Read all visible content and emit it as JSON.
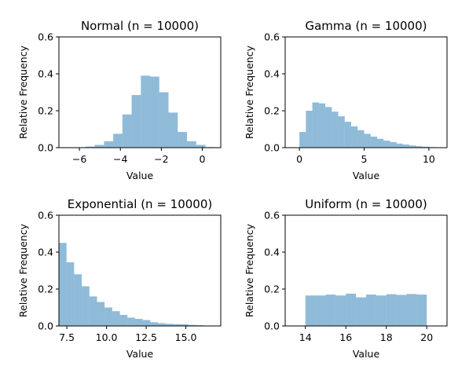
{
  "chart_data": [
    {
      "type": "bar",
      "title": "Normal (n = 10000)",
      "xlabel": "Value",
      "ylabel": "Relative Frequency",
      "xlim": [
        -7.0,
        0.9
      ],
      "ylim": [
        0,
        0.6
      ],
      "xticks": [
        -6,
        -4,
        -2,
        0
      ],
      "xtick_labels": [
        "−6",
        "−4",
        "−2",
        "0"
      ],
      "yticks": [
        0,
        0.2,
        0.4,
        0.6
      ],
      "ytick_labels": [
        "0.0",
        "0.2",
        "0.4",
        "0.6"
      ],
      "bin_edges": [
        -6.6,
        -6.15,
        -5.7,
        -5.25,
        -4.8,
        -4.35,
        -3.9,
        -3.45,
        -3.0,
        -2.55,
        -2.1,
        -1.65,
        -1.2,
        -0.75,
        -0.3,
        0.15,
        0.6
      ],
      "values": [
        0.0,
        0.002,
        0.006,
        0.015,
        0.035,
        0.075,
        0.18,
        0.285,
        0.39,
        0.385,
        0.3,
        0.19,
        0.085,
        0.035,
        0.015,
        0.003
      ]
    },
    {
      "type": "bar",
      "title": "Gamma (n = 10000)",
      "xlabel": "Value",
      "ylabel": "Relative Frequency",
      "xlim": [
        -1.1,
        11.4
      ],
      "ylim": [
        0,
        0.6
      ],
      "xticks": [
        0,
        5,
        10
      ],
      "xtick_labels": [
        "0",
        "5",
        "10"
      ],
      "yticks": [
        0,
        0.2,
        0.4,
        0.6
      ],
      "ytick_labels": [
        "0.0",
        "0.2",
        "0.4",
        "0.6"
      ],
      "bin_edges": [
        0.0,
        0.5,
        1.0,
        1.5,
        2.0,
        2.5,
        3.0,
        3.5,
        4.0,
        4.5,
        5.0,
        5.5,
        6.0,
        6.5,
        7.0,
        7.5,
        8.0,
        8.5,
        9.0,
        9.5,
        10.0,
        10.5,
        11.0
      ],
      "values": [
        0.085,
        0.2,
        0.245,
        0.24,
        0.22,
        0.195,
        0.17,
        0.14,
        0.115,
        0.095,
        0.075,
        0.06,
        0.048,
        0.038,
        0.03,
        0.022,
        0.017,
        0.012,
        0.008,
        0.005,
        0.003,
        0.002
      ]
    },
    {
      "type": "bar",
      "title": "Exponential (n = 10000)",
      "xlabel": "Value",
      "ylabel": "Relative Frequency",
      "xlim": [
        7.0,
        17.2
      ],
      "ylim": [
        0,
        0.6
      ],
      "xticks": [
        7.5,
        10.0,
        12.5,
        15.0
      ],
      "xtick_labels": [
        "7.5",
        "10.0",
        "12.5",
        "15.0"
      ],
      "yticks": [
        0,
        0.2,
        0.4,
        0.6
      ],
      "ytick_labels": [
        "0.0",
        "0.2",
        "0.4",
        "0.6"
      ],
      "bin_edges": [
        7.0,
        7.48,
        7.96,
        8.44,
        8.92,
        9.4,
        9.88,
        10.36,
        10.84,
        11.32,
        11.8,
        12.28,
        12.76,
        13.24,
        13.72,
        14.2,
        14.68,
        15.16,
        15.64,
        16.12,
        16.6
      ],
      "values": [
        0.45,
        0.345,
        0.28,
        0.215,
        0.16,
        0.13,
        0.1,
        0.08,
        0.06,
        0.045,
        0.038,
        0.032,
        0.02,
        0.015,
        0.012,
        0.01,
        0.009,
        0.006,
        0.004,
        0.002
      ]
    },
    {
      "type": "bar",
      "title": "Uniform (n = 10000)",
      "xlabel": "Value",
      "ylabel": "Relative Frequency",
      "xlim": [
        13.0,
        21.0
      ],
      "ylim": [
        0,
        0.6
      ],
      "xticks": [
        14,
        16,
        18,
        20
      ],
      "xtick_labels": [
        "14",
        "16",
        "18",
        "20"
      ],
      "yticks": [
        0,
        0.2,
        0.4,
        0.6
      ],
      "ytick_labels": [
        "0.0",
        "0.2",
        "0.4",
        "0.6"
      ],
      "bin_edges": [
        14.0,
        14.5,
        15.0,
        15.5,
        16.0,
        16.5,
        17.0,
        17.5,
        18.0,
        18.5,
        19.0,
        19.5,
        20.0
      ],
      "values": [
        0.165,
        0.165,
        0.17,
        0.165,
        0.175,
        0.155,
        0.17,
        0.165,
        0.172,
        0.168,
        0.173,
        0.17
      ]
    }
  ]
}
